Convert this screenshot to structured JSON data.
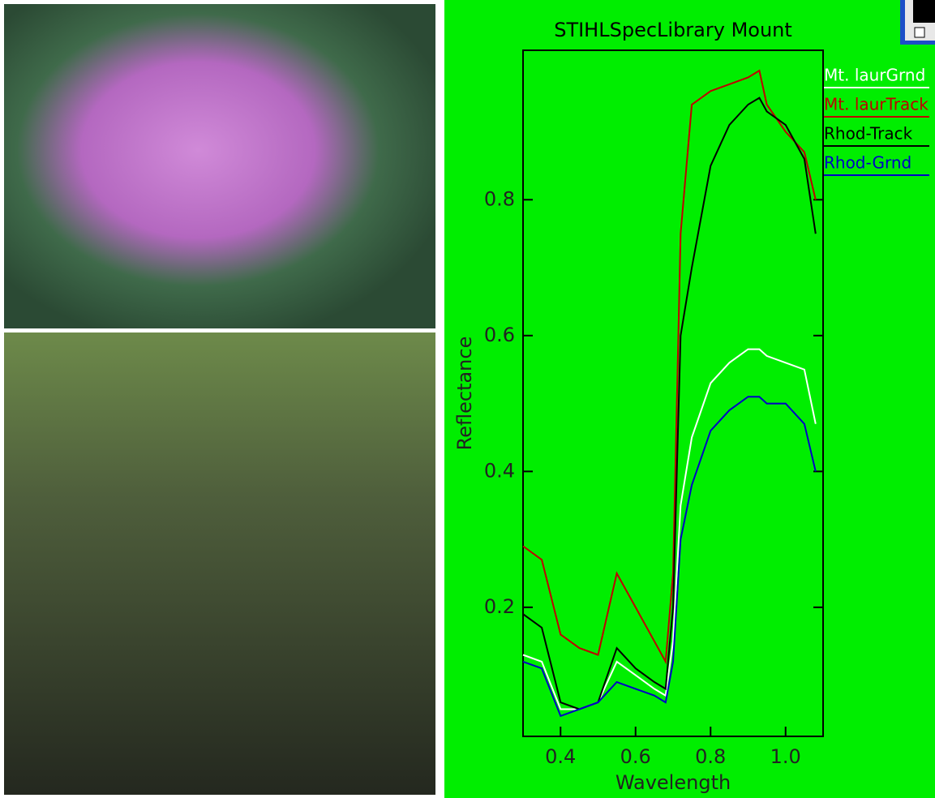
{
  "chart_data": {
    "type": "line",
    "title": "STIHLSpecLibrary Mount",
    "x_label": "Wavelength",
    "y_label": "Reflectance",
    "x": [
      0.3,
      0.35,
      0.4,
      0.45,
      0.5,
      0.55,
      0.6,
      0.65,
      0.68,
      0.7,
      0.72,
      0.75,
      0.8,
      0.85,
      0.9,
      0.93,
      0.95,
      1.0,
      1.05,
      1.08
    ],
    "series": [
      {
        "name": "Mt. laurGrnd",
        "color": "#ffffff",
        "values": [
          0.13,
          0.12,
          0.05,
          0.05,
          0.06,
          0.12,
          0.1,
          0.08,
          0.07,
          0.15,
          0.35,
          0.45,
          0.53,
          0.56,
          0.58,
          0.58,
          0.57,
          0.56,
          0.55,
          0.47
        ]
      },
      {
        "name": "Mt. laurTrack",
        "color": "#c00000",
        "values": [
          0.29,
          0.27,
          0.16,
          0.14,
          0.13,
          0.25,
          0.2,
          0.15,
          0.12,
          0.25,
          0.75,
          0.94,
          0.96,
          0.97,
          0.98,
          0.99,
          0.94,
          0.9,
          0.87,
          0.8
        ]
      },
      {
        "name": "Rhod-Track",
        "color": "#000000",
        "values": [
          0.19,
          0.17,
          0.06,
          0.05,
          0.06,
          0.14,
          0.11,
          0.09,
          0.08,
          0.2,
          0.6,
          0.7,
          0.85,
          0.91,
          0.94,
          0.95,
          0.93,
          0.91,
          0.86,
          0.75
        ]
      },
      {
        "name": "Rhod-Grnd",
        "color": "#0000c8",
        "values": [
          0.12,
          0.11,
          0.04,
          0.05,
          0.06,
          0.09,
          0.08,
          0.07,
          0.06,
          0.12,
          0.3,
          0.38,
          0.46,
          0.49,
          0.51,
          0.51,
          0.5,
          0.5,
          0.47,
          0.4
        ]
      }
    ],
    "xlim": [
      0.3,
      1.1
    ],
    "ylim": [
      0.01,
      1.02
    ],
    "xticks": [
      0.4,
      0.6,
      0.8,
      {
        "value": 1,
        "label": "1.0"
      }
    ],
    "yticks": [
      0.2,
      0.4,
      0.6,
      0.8
    ],
    "background": "#00ee00",
    "legend": "top-right"
  }
}
